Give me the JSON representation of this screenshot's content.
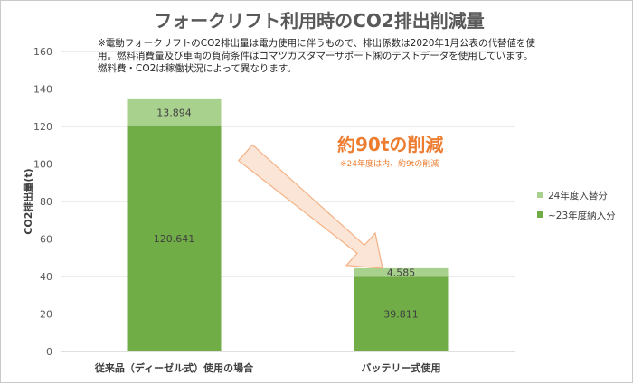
{
  "chart_data": {
    "type": "bar",
    "stacked": true,
    "title": "フォークリフト利用時のCO2排出削減量",
    "note_lines": [
      "※電動フォークリフトのCO2排出量は電力使用に伴うもので、排出係数は2020年1月公表の代替値を使",
      "用。燃料消費量及び車両の負荷条件はコマツカスタマーサポート㈱のテストデータを使用しています。",
      "燃料費・CO2は稼働状況によって異なります。"
    ],
    "ylabel": "CO2排出量(t)",
    "ylim": [
      0,
      160
    ],
    "yticks": [
      0,
      20,
      40,
      60,
      80,
      100,
      120,
      140,
      160
    ],
    "yticks_labels": [
      "0",
      "20",
      "40",
      "60",
      "80",
      "100",
      "120",
      "140",
      "160"
    ],
    "grid": true,
    "legend_position": "right",
    "categories": [
      "従来品（ディーゼル式）使用の場合",
      "バッテリー式使用"
    ],
    "series": [
      {
        "name": "~23年度納入分",
        "values": [
          120.641,
          39.811
        ],
        "labels": [
          "120.641",
          "39.811"
        ],
        "color": "#70AD47"
      },
      {
        "name": "24年度入替分",
        "values": [
          13.894,
          4.585
        ],
        "labels": [
          "13.894",
          "4.585"
        ],
        "color": "#A9D18E"
      }
    ],
    "annotation": {
      "main": "約90tの削減",
      "sub": "※24年度は内、約9tの削減",
      "color": "#ED7D31",
      "arrow_fill": "#FBE5D6",
      "arrow_stroke": "#F4B183"
    }
  }
}
